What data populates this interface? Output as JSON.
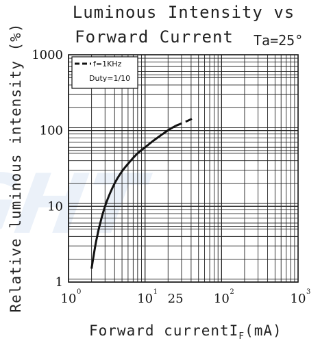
{
  "chart_data": {
    "type": "line",
    "title_line1": "Luminous Intensity vs",
    "title_line2": "Forward Current",
    "condition": "Ta=25°",
    "ylabel": "Relative luminous intensity (%)",
    "xlabel_main": "Forward currentI",
    "xlabel_sub": "F",
    "xlabel_unit": "(mA)",
    "x_scale": "log",
    "y_scale": "log",
    "xlim": [
      1,
      1000
    ],
    "ylim": [
      1,
      1000
    ],
    "x_ticks": [
      {
        "value": 1,
        "base": "10",
        "exp": "0"
      },
      {
        "value": 10,
        "base": "10",
        "exp": "1"
      },
      {
        "value": 25,
        "base": "25",
        "exp": ""
      },
      {
        "value": 100,
        "base": "10",
        "exp": "2"
      },
      {
        "value": 1000,
        "base": "10",
        "exp": "3"
      }
    ],
    "y_ticks": [
      {
        "value": 1,
        "label": "1"
      },
      {
        "value": 10,
        "label": "10"
      },
      {
        "value": 100,
        "label": "100"
      },
      {
        "value": 1000,
        "label": "1000"
      }
    ],
    "grid": true,
    "legend": {
      "placement": "top-left",
      "entries": [
        "f=1KHz",
        "Duty=1/10"
      ]
    },
    "series": [
      {
        "style": "solid",
        "x": [
          2,
          2.3,
          2.7,
          3.2,
          4,
          5,
          6.5,
          8,
          10,
          13,
          17,
          21,
          25
        ],
        "y": [
          1.5,
          3.5,
          7,
          12,
          20,
          29,
          40,
          50,
          60,
          74,
          90,
          104,
          115
        ]
      },
      {
        "style": "dashed",
        "x": [
          25,
          30,
          37,
          45
        ],
        "y": [
          115,
          124,
          136,
          150
        ]
      }
    ]
  },
  "watermark_text": "IGHT"
}
